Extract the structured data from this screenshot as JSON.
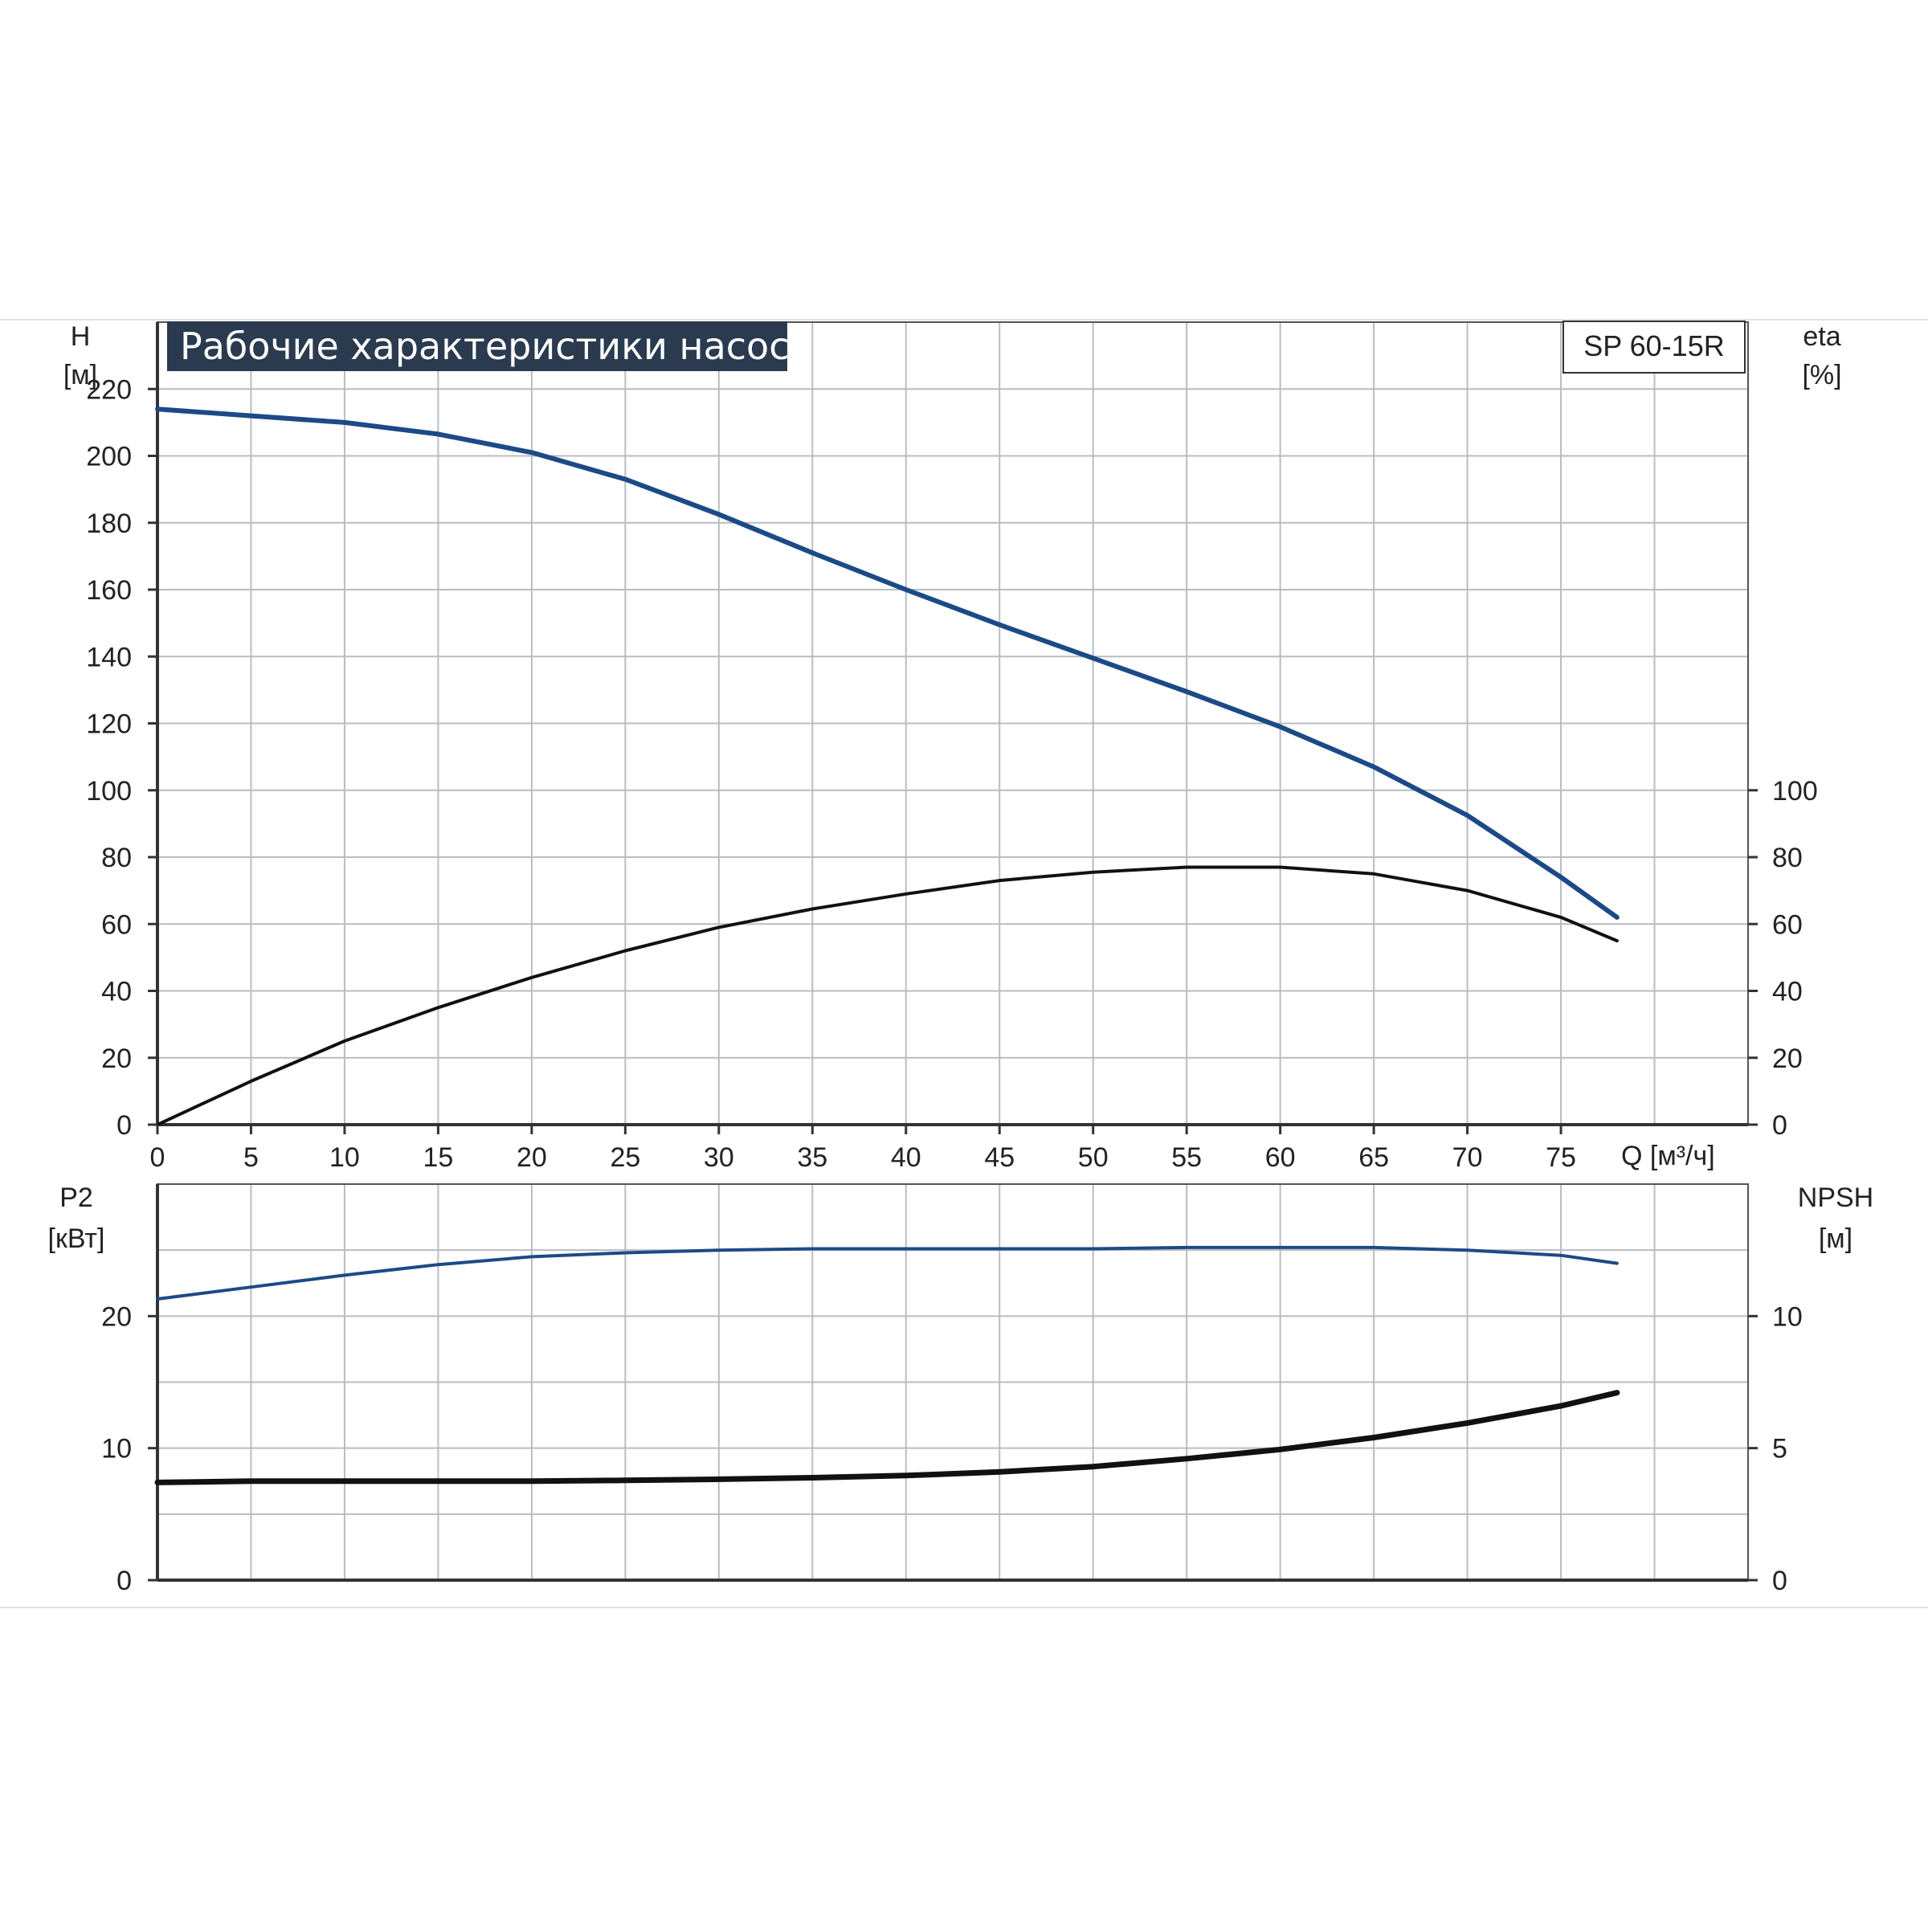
{
  "chart_data": [
    {
      "type": "line",
      "title": "Рабочие характеристики насоса",
      "model_label": "SP 60-15R",
      "x": {
        "ticks": [
          "0",
          "5",
          "10",
          "15",
          "20",
          "25",
          "30",
          "35",
          "40",
          "45",
          "50",
          "55",
          "60",
          "65",
          "70",
          "75"
        ],
        "label": "Q [м³/ч]",
        "range": [
          0,
          85
        ]
      },
      "y_left": {
        "name": "H",
        "unit": "[м]",
        "ticks": [
          "0",
          "20",
          "40",
          "60",
          "80",
          "100",
          "120",
          "140",
          "160",
          "180",
          "200",
          "220"
        ],
        "range": [
          0,
          240
        ]
      },
      "y_right": {
        "name": "eta",
        "unit": "[%]",
        "ticks": [
          "0",
          "20",
          "40",
          "60",
          "80",
          "100"
        ],
        "range": [
          0,
          240
        ]
      },
      "grid": true,
      "series": [
        {
          "axis": "left",
          "color": "#1c4a86",
          "x": [
            0,
            5,
            10,
            15,
            20,
            25,
            30,
            35,
            40,
            45,
            50,
            55,
            60,
            65,
            70,
            75,
            78
          ],
          "y": [
            214,
            212,
            210,
            206.5,
            201,
            193,
            182.5,
            171,
            160,
            149.5,
            139.5,
            129.5,
            119,
            107,
            92.5,
            74,
            62
          ]
        },
        {
          "axis": "right",
          "color": "#111111",
          "x": [
            0,
            5,
            10,
            15,
            20,
            25,
            30,
            35,
            40,
            45,
            50,
            55,
            60,
            65,
            70,
            75,
            78
          ],
          "y": [
            0,
            13,
            25,
            35,
            44,
            52,
            59,
            64.5,
            69,
            73,
            75.5,
            77,
            77,
            75,
            70,
            62,
            55
          ]
        }
      ]
    },
    {
      "type": "line",
      "y_left": {
        "name": "P2",
        "unit": "[кВт]",
        "ticks": [
          "0",
          "10",
          "20"
        ],
        "range": [
          0,
          30
        ]
      },
      "y_right": {
        "name": "NPSH",
        "unit": "[м]",
        "ticks": [
          "0",
          "5",
          "10"
        ],
        "range": [
          0,
          15
        ]
      },
      "grid": true,
      "series": [
        {
          "axis": "left",
          "color": "#1c4a86",
          "x": [
            0,
            5,
            10,
            15,
            20,
            25,
            30,
            35,
            40,
            45,
            50,
            55,
            60,
            65,
            70,
            75,
            78
          ],
          "y": [
            21.3,
            22.2,
            23.1,
            23.9,
            24.5,
            24.8,
            25.0,
            25.1,
            25.1,
            25.1,
            25.1,
            25.2,
            25.2,
            25.2,
            25.0,
            24.6,
            24.0
          ]
        },
        {
          "axis": "right",
          "color": "#111111",
          "x": [
            0,
            5,
            10,
            15,
            20,
            25,
            30,
            35,
            40,
            45,
            50,
            55,
            60,
            65,
            70,
            75,
            78
          ],
          "y": [
            3.7,
            3.75,
            3.75,
            3.75,
            3.75,
            3.78,
            3.82,
            3.88,
            3.96,
            4.1,
            4.3,
            4.6,
            4.95,
            5.4,
            5.95,
            6.6,
            7.1
          ]
        }
      ]
    }
  ]
}
